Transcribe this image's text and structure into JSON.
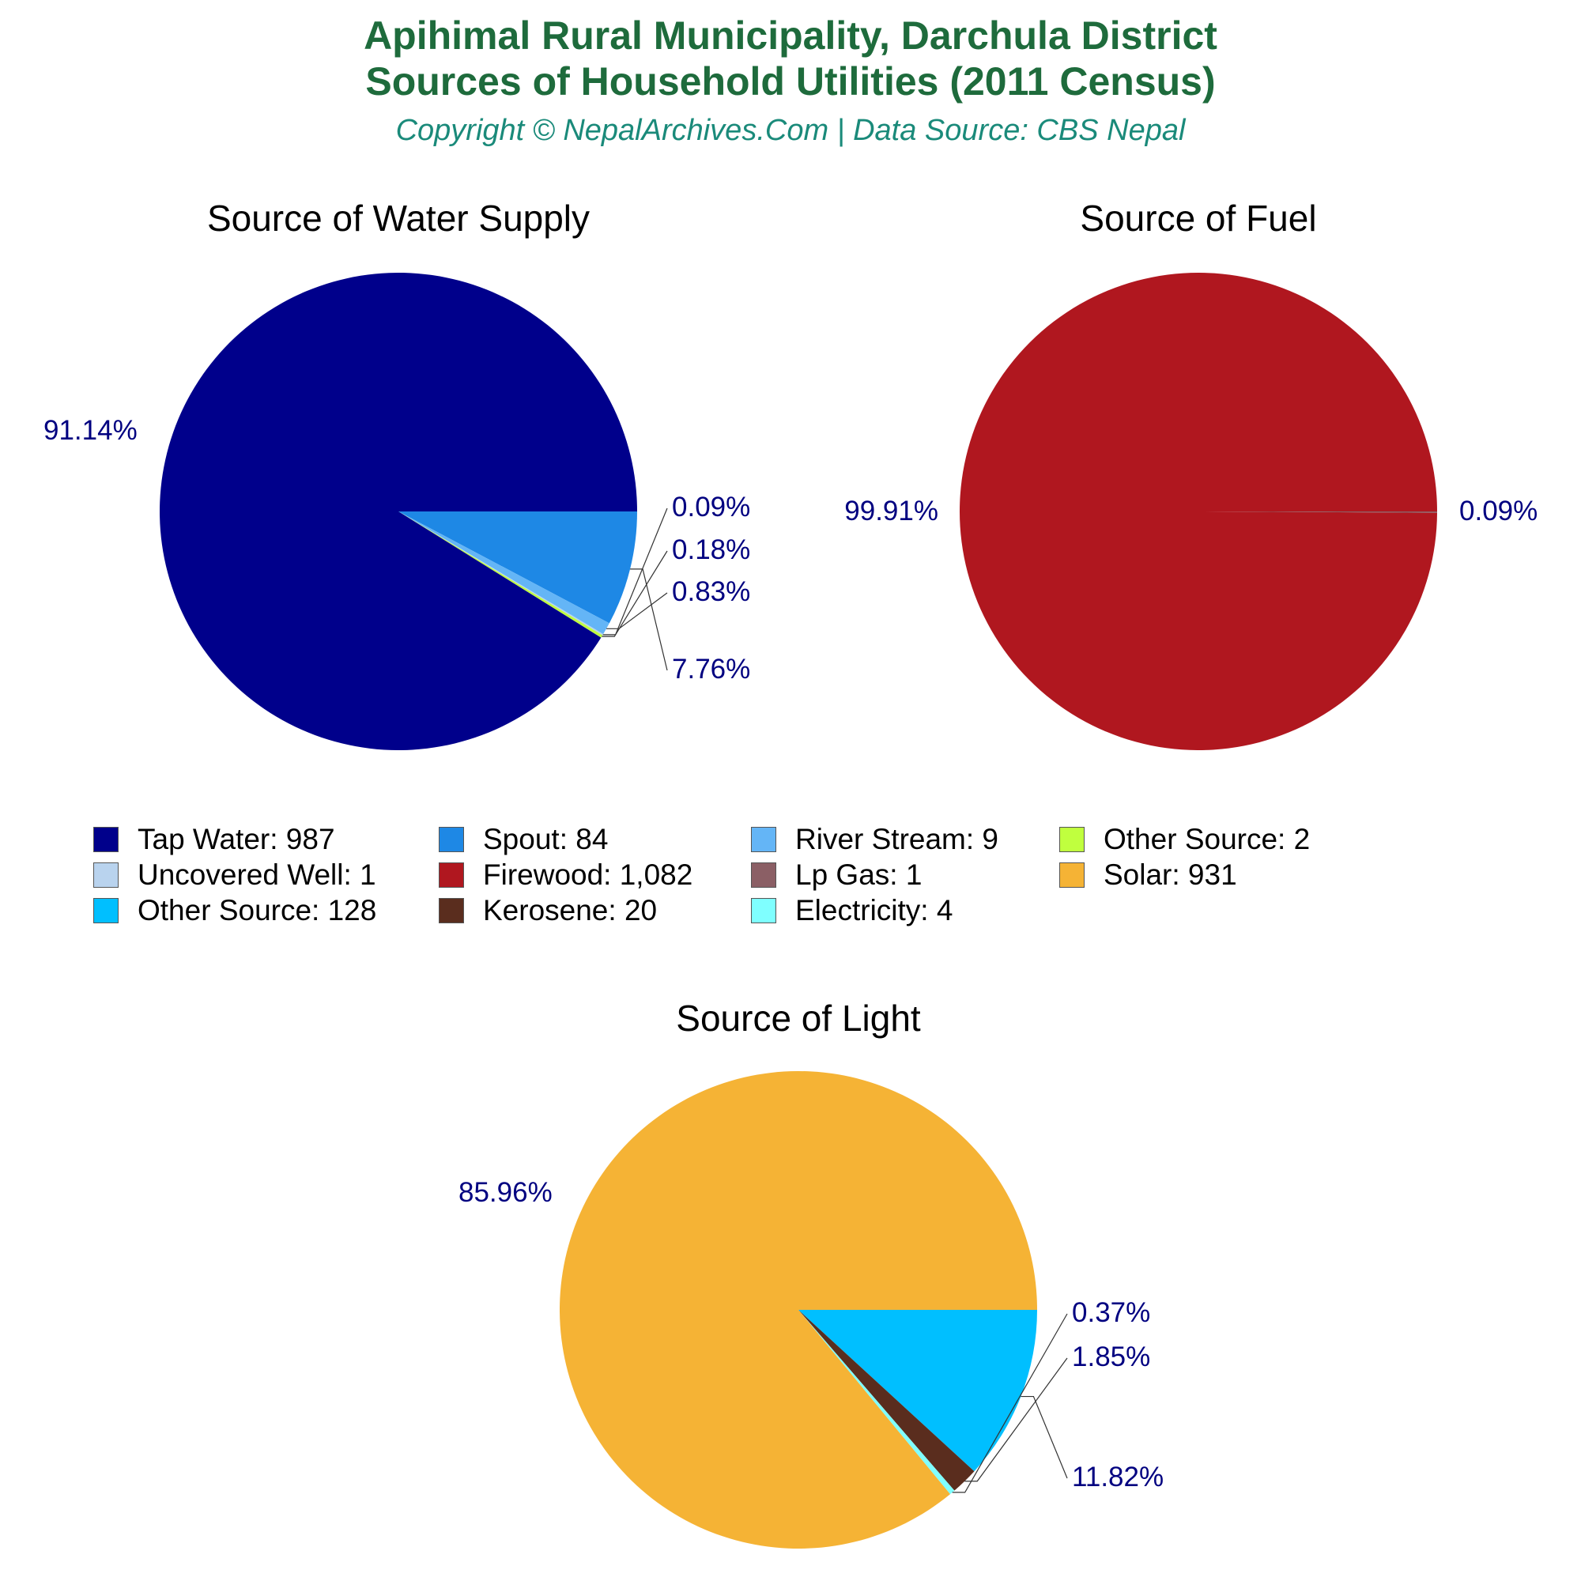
{
  "header": {
    "title_line1": "Apihimal Rural Municipality, Darchula District",
    "title_line2": "Sources of Household Utilities (2011 Census)",
    "subtitle": "Copyright © NepalArchives.Com | Data Source: CBS Nepal"
  },
  "colors": {
    "title": "#1e6b3c",
    "subtitle": "#1a8a7a",
    "pct_label": "#000080"
  },
  "chart_data": [
    {
      "type": "pie",
      "title": "Source of Water Supply",
      "slices": [
        {
          "name": "Tap Water",
          "value": 987,
          "pct_label": "91.14%",
          "color": "#00008b"
        },
        {
          "name": "Spout",
          "value": 84,
          "pct_label": "7.76%",
          "color": "#1e88e5"
        },
        {
          "name": "River Stream",
          "value": 9,
          "pct_label": "0.83%",
          "color": "#64b5f6"
        },
        {
          "name": "Uncovered Well",
          "value": 1,
          "pct_label": "0.09%",
          "color": "#b9d3ee"
        },
        {
          "name": "Other Source",
          "value": 2,
          "pct_label": "0.18%",
          "color": "#c0ff3e"
        }
      ]
    },
    {
      "type": "pie",
      "title": "Source of Fuel",
      "slices": [
        {
          "name": "Firewood",
          "value": 1082,
          "pct_label": "99.91%",
          "color": "#b0171f"
        },
        {
          "name": "Lp Gas",
          "value": 1,
          "pct_label": "0.09%",
          "color": "#8b5f65"
        }
      ]
    },
    {
      "type": "pie",
      "title": "Source of Light",
      "slices": [
        {
          "name": "Solar",
          "value": 931,
          "pct_label": "85.96%",
          "color": "#f5b335"
        },
        {
          "name": "Other Source",
          "value": 128,
          "pct_label": "11.82%",
          "color": "#00bfff"
        },
        {
          "name": "Kerosene",
          "value": 20,
          "pct_label": "1.85%",
          "color": "#5a2d1e"
        },
        {
          "name": "Electricity",
          "value": 4,
          "pct_label": "0.37%",
          "color": "#7fffff"
        }
      ]
    }
  ],
  "legend": {
    "placement": "between-charts",
    "rows": [
      [
        {
          "label": "Tap Water: 987",
          "color": "#00008b"
        },
        {
          "label": "Spout: 84",
          "color": "#1e88e5"
        },
        {
          "label": "River Stream: 9",
          "color": "#64b5f6"
        },
        {
          "label": "Other Source: 2",
          "color": "#c0ff3e"
        }
      ],
      [
        {
          "label": "Uncovered Well: 1",
          "color": "#b9d3ee"
        },
        {
          "label": "Firewood: 1,082",
          "color": "#b0171f"
        },
        {
          "label": "Lp Gas: 1",
          "color": "#8b5f65"
        },
        {
          "label": "Solar: 931",
          "color": "#f5b335"
        }
      ],
      [
        {
          "label": "Other Source: 128",
          "color": "#00bfff"
        },
        {
          "label": "Kerosene: 20",
          "color": "#5a2d1e"
        },
        {
          "label": "Electricity: 4",
          "color": "#7fffff"
        }
      ]
    ]
  }
}
